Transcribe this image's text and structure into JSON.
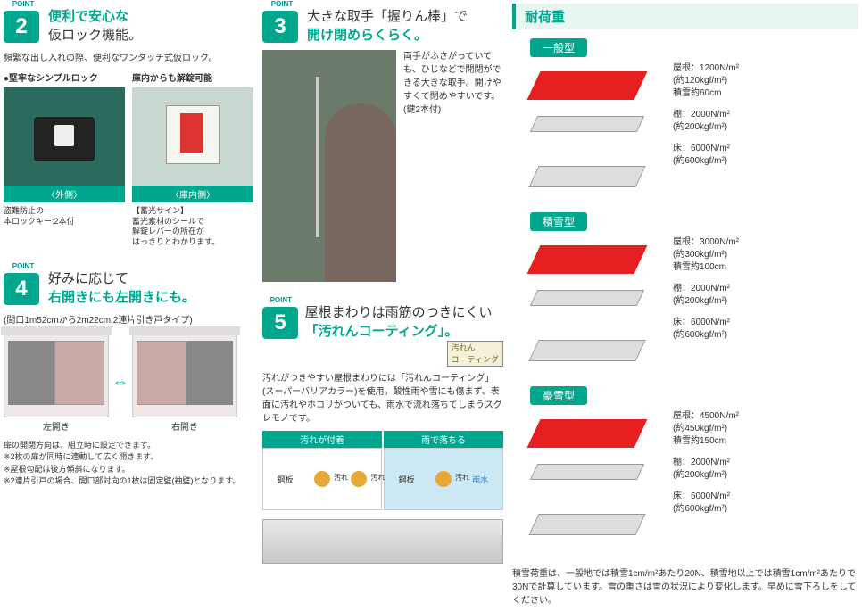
{
  "points": {
    "p2": {
      "badge": "POINT",
      "num": "2",
      "title_accent": "便利で安心な",
      "title_rest": "仮ロック機能。",
      "sub": "頻繁な出し入れの際、便利なワンタッチ式仮ロック。",
      "left_label": "●堅牢なシンプルロック",
      "right_label": "庫内からも解錠可能",
      "cap_left": "〈外側〉",
      "cap_right": "〈庫内側〉",
      "note_left": "盗難防止の\n本ロックキー:2本付",
      "note_right": "【蓄光サイン】\n蓄光素材のシールで\n解錠レバーの所在が\nはっきりとわかります。"
    },
    "p3": {
      "badge": "POINT",
      "num": "3",
      "title_pre": "大きな取手「握りん棒」で",
      "title_accent": "開け閉めらくらく。",
      "desc": "両手がふさがっていても、ひじなどで開閉ができる大きな取手。開けやすくて閉めやすいです。\n(鍵2本付)"
    },
    "p4": {
      "badge": "POINT",
      "num": "4",
      "title_pre": "好みに応じて",
      "title_accent": "右開きにも左開きにも。",
      "sub": "(間口1m52cmから2m22cm:2連片引き戸タイプ)",
      "left_cap": "左開き",
      "right_cap": "右開き",
      "notes": "扉の開閉方向は、組立時に設定できます。\n※2枚の扉が同時に連動して広く開きます。\n※屋根勾配は後方傾斜になります。\n※2連片引戸の場合、開口部対向の1枚は固定壁(袖壁)となります。"
    },
    "p5": {
      "badge": "POINT",
      "num": "5",
      "title_pre": "屋根まわりは雨筋のつきにくい",
      "title_accent": "「汚れんコーティング」。",
      "badge_text": "汚れん\nコーティング",
      "desc": "汚れがつきやすい屋根まわりには「汚れんコーティング」(スーパーバリアカラー)を使用。酸性雨や雪にも傷まず、表面に汚れやホコリがついても、雨水で流れ落ちてしまうスグレモノです。",
      "head_left": "汚れが付着",
      "head_right": "雨で落ちる",
      "dirt": "汚れ",
      "rain": "雨水",
      "plate": "鋼板"
    }
  },
  "load": {
    "title": "耐荷重",
    "types": [
      {
        "name": "一般型",
        "roof": "屋根：1200N/m²\n(約120kgf/m²)\n積雪約60cm",
        "shelf": "棚：2000N/m²\n(約200kgf/m²)",
        "floor": "床：6000N/m²\n(約600kgf/m²)"
      },
      {
        "name": "積雪型",
        "roof": "屋根：3000N/m²\n(約300kgf/m²)\n積雪約100cm",
        "shelf": "棚：2000N/m²\n(約200kgf/m²)",
        "floor": "床：6000N/m²\n(約600kgf/m²)"
      },
      {
        "name": "豪雪型",
        "roof": "屋根：4500N/m²\n(約450kgf/m²)\n積雪約150cm",
        "shelf": "棚：2000N/m²\n(約200kgf/m²)",
        "floor": "床：6000N/m²\n(約600kgf/m²)"
      }
    ],
    "footnote": "積雪荷重は、一般地では積雪1cm/m²あたり20N、積雪地以上では積雪1cm/m²あたりで30Nで計算しています。雪の重さは雪の状況により変化します。早めに雪下ろしをしてください。"
  }
}
